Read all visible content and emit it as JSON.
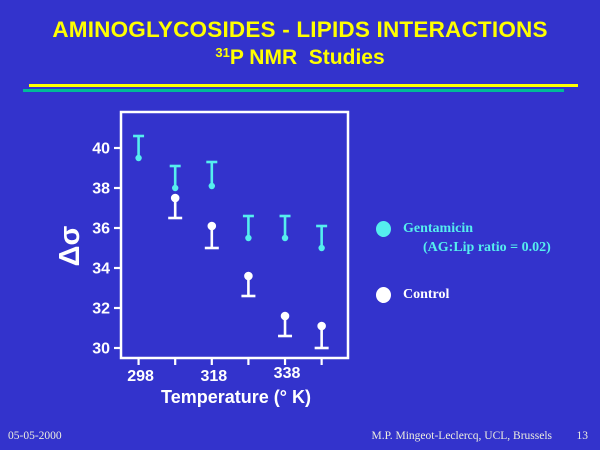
{
  "colors": {
    "background": "#3333CC",
    "title": "#FFFF00",
    "rule_yellow": "#FFFF00",
    "rule_teal": "#00BB99",
    "gentamicin_cyan": "#55EEEE",
    "control_white": "#FFFFFF",
    "axis_white": "#FFFFFF",
    "footer_text": "#EDEDDF"
  },
  "slide": {
    "title_line1": "AMINOGLYCOSIDES - LIPIDS INTERACTIONS",
    "title_line2_sup": "31",
    "title_line2_rest": "P NMR  Studies"
  },
  "legend": {
    "items": [
      {
        "label": "Gentamicin",
        "sublabel": "(AG:Lip ratio = 0.02)",
        "color": "#55EEEE"
      },
      {
        "label": "Control",
        "sublabel": "",
        "color": "#FFFFFF"
      }
    ]
  },
  "footer": {
    "date": "05-05-2000",
    "credit": "M.P. Mingeot-Leclercq, UCL, Brussels",
    "page": "13"
  },
  "chart_data": {
    "type": "scatter",
    "xlabel": "Temperature (° K)",
    "ylabel": "Δσ",
    "x_ticks": [
      298,
      308,
      318,
      328,
      338,
      348
    ],
    "x_tick_labels": [
      "298",
      "",
      "318",
      "",
      "338",
      ""
    ],
    "y_ticks": [
      30,
      32,
      34,
      36,
      38,
      40
    ],
    "xlim": [
      293.2,
      355.2
    ],
    "ylim": [
      29.5,
      41.8
    ],
    "grid": false,
    "legend_position": "right",
    "series": [
      {
        "key": "gentamicin",
        "name": "Gentamicin (AG:Lip ratio = 0.02)",
        "color": "#55EEEE",
        "error_direction": "up",
        "points": [
          {
            "x": 298,
            "y": 39.5,
            "err": 1.1
          },
          {
            "x": 308,
            "y": 38.0,
            "err": 1.1
          },
          {
            "x": 318,
            "y": 38.1,
            "err": 1.2
          },
          {
            "x": 328,
            "y": 35.5,
            "err": 1.1
          },
          {
            "x": 338,
            "y": 35.5,
            "err": 1.1
          },
          {
            "x": 348,
            "y": 35.0,
            "err": 1.1
          }
        ]
      },
      {
        "key": "control",
        "name": "Control",
        "color": "#FFFFFF",
        "error_direction": "down",
        "points": [
          {
            "x": 308,
            "y": 37.5,
            "err": 1.0
          },
          {
            "x": 318,
            "y": 36.1,
            "err": 1.1
          },
          {
            "x": 328,
            "y": 33.6,
            "err": 1.0
          },
          {
            "x": 338,
            "y": 31.6,
            "err": 1.0
          },
          {
            "x": 348,
            "y": 31.1,
            "err": 1.1
          }
        ]
      }
    ]
  }
}
